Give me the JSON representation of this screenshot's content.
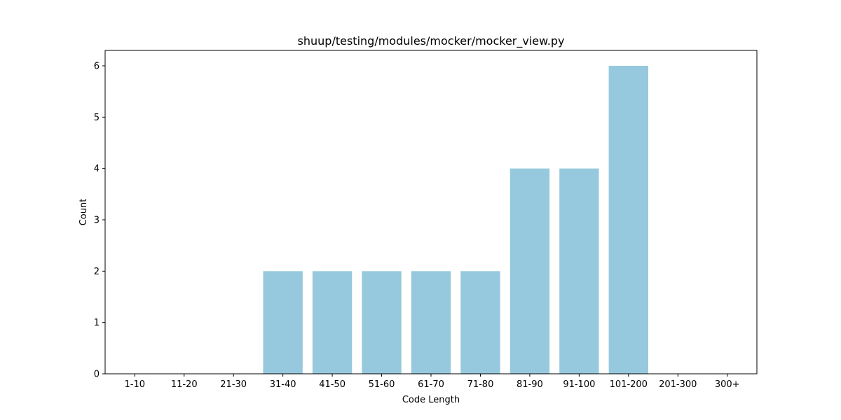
{
  "chart_data": {
    "type": "bar",
    "title": "shuup/testing/modules/mocker/mocker_view.py",
    "xlabel": "Code Length",
    "ylabel": "Count",
    "categories": [
      "1-10",
      "11-20",
      "21-30",
      "31-40",
      "41-50",
      "51-60",
      "61-70",
      "71-80",
      "81-90",
      "91-100",
      "101-200",
      "201-300",
      "300+"
    ],
    "values": [
      0,
      0,
      0,
      2,
      2,
      2,
      2,
      2,
      4,
      4,
      6,
      0,
      0
    ],
    "yticks": [
      0,
      1,
      2,
      3,
      4,
      5,
      6
    ],
    "ylim": [
      0,
      6.3
    ],
    "grid": false,
    "bar_color": "#96c9dd"
  }
}
